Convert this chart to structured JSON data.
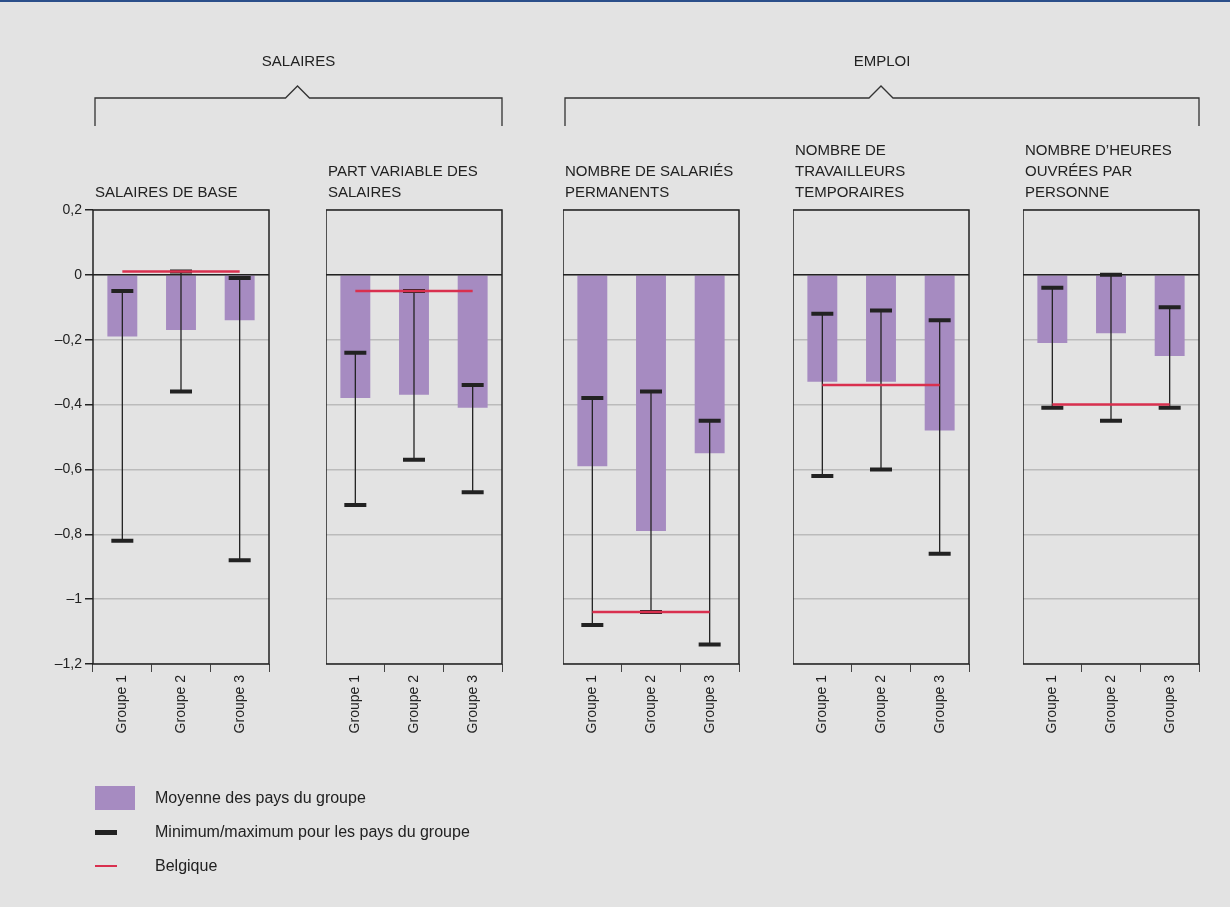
{
  "chart_data": [
    {
      "type": "bar",
      "title": "SALAIRES DE BASE",
      "categories": [
        "Groupe 1",
        "Groupe 2",
        "Groupe 3"
      ],
      "series": [
        {
          "name": "Moyenne des pays du groupe",
          "color": "#a68bc1",
          "values": [
            -0.19,
            -0.17,
            -0.14
          ],
          "errors": [
            [
              -0.82,
              -0.05
            ],
            [
              -0.36,
              0.01
            ],
            [
              -0.88,
              -0.01
            ]
          ]
        }
      ],
      "ylim": [
        -1.2,
        0.2
      ],
      "yticks": [
        {
          "value": 0.2,
          "label": "0,2"
        },
        0,
        {
          "value": -0.2,
          "label": "–0,2"
        },
        {
          "value": -0.4,
          "label": "–0,4"
        },
        {
          "value": -0.6,
          "label": "–0,6"
        },
        {
          "value": -0.8,
          "label": "–0,8"
        },
        {
          "value": -1,
          "label": "–1"
        },
        {
          "value": -1.2,
          "label": "–1,2"
        }
      ],
      "grid": "y",
      "ref_lines": [
        {
          "axis": "y",
          "value": 0.01,
          "label": "Belgique",
          "color": "#d9304f"
        }
      ],
      "legend": "bottom",
      "annotations": [
        "SALAIRES",
        "Minimum/maximum pour les pays du groupe"
      ]
    },
    {
      "type": "bar",
      "title": "PART VARIABLE DES SALAIRES",
      "categories": [
        "Groupe 1",
        "Groupe 2",
        "Groupe 3"
      ],
      "series": [
        {
          "color": "#a68bc1",
          "values": [
            -0.38,
            -0.37,
            -0.41
          ],
          "errors": [
            [
              -0.71,
              -0.24
            ],
            [
              -0.57,
              -0.05
            ],
            [
              -0.67,
              -0.34
            ]
          ]
        }
      ],
      "ylim": [
        -1.2,
        0.2
      ],
      "yticks": [
        0.2,
        0,
        -0.2,
        -0.4,
        -0.6,
        -0.8,
        -1,
        -1.2
      ],
      "tick_labels": "x",
      "grid": "y",
      "ref_lines": [
        {
          "axis": "y",
          "value": -0.05,
          "color": "#d9304f"
        }
      ]
    },
    {
      "type": "bar",
      "title": "NOMBRE DE SALARIÉS PERMANENTS",
      "categories": [
        "Groupe 1",
        "Groupe 2",
        "Groupe 3"
      ],
      "series": [
        {
          "color": "#a68bc1",
          "values": [
            -0.59,
            -0.79,
            -0.55
          ],
          "errors": [
            [
              -1.08,
              -0.38
            ],
            [
              -1.04,
              -0.36
            ],
            [
              -1.14,
              -0.45
            ]
          ]
        }
      ],
      "ylim": [
        -1.2,
        0.2
      ],
      "yticks": [
        0.2,
        0,
        -0.2,
        -0.4,
        -0.6,
        -0.8,
        -1,
        -1.2
      ],
      "tick_labels": "x",
      "grid": "y",
      "ref_lines": [
        {
          "axis": "y",
          "value": -1.04,
          "color": "#d9304f"
        }
      ],
      "annotations": [
        "EMPLOI"
      ]
    },
    {
      "type": "bar",
      "title": "NOMBRE DE TRAVAILLEURS TEMPORAIRES",
      "categories": [
        "Groupe 1",
        "Groupe 2",
        "Groupe 3"
      ],
      "series": [
        {
          "color": "#a68bc1",
          "values": [
            -0.33,
            -0.33,
            -0.48
          ],
          "errors": [
            [
              -0.62,
              -0.12
            ],
            [
              -0.6,
              -0.11
            ],
            [
              -0.86,
              -0.14
            ]
          ]
        }
      ],
      "ylim": [
        -1.2,
        0.2
      ],
      "yticks": [
        0.2,
        0,
        -0.2,
        -0.4,
        -0.6,
        -0.8,
        -1,
        -1.2
      ],
      "tick_labels": "x",
      "grid": "y",
      "ref_lines": [
        {
          "axis": "y",
          "value": -0.34,
          "color": "#d9304f"
        }
      ]
    },
    {
      "type": "bar",
      "title": "NOMBRE D’HEURES OUVRÉES PAR PERSONNE",
      "categories": [
        "Groupe 1",
        "Groupe 2",
        "Groupe 3"
      ],
      "series": [
        {
          "color": "#a68bc1",
          "values": [
            -0.21,
            -0.18,
            -0.25
          ],
          "errors": [
            [
              -0.41,
              -0.04
            ],
            [
              -0.45,
              0
            ],
            [
              -0.41,
              -0.1
            ]
          ]
        }
      ],
      "ylim": [
        -1.2,
        0.2
      ],
      "yticks": [
        0.2,
        0,
        -0.2,
        -0.4,
        -0.6,
        -0.8,
        -1,
        -1.2
      ],
      "tick_labels": "x",
      "grid": "y",
      "ref_lines": [
        {
          "axis": "y",
          "value": -0.4,
          "color": "#d9304f"
        }
      ]
    }
  ]
}
